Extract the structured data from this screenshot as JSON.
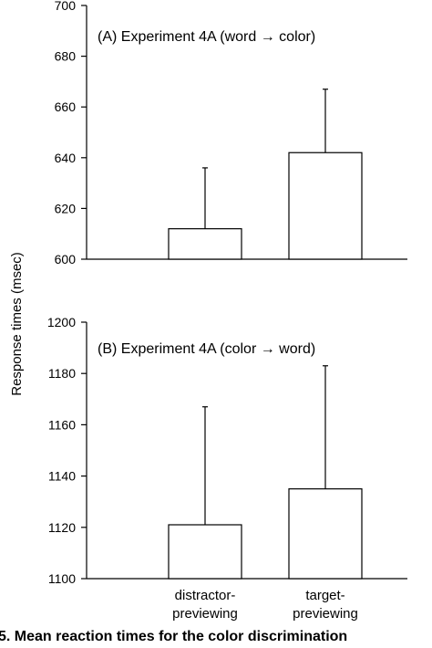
{
  "ylabel": "Response times (msec)",
  "caption": "5. Mean reaction times for the color discrimination",
  "chart_data": [
    {
      "type": "bar",
      "title": "(A) Experiment 4A (word → color)",
      "categories": [
        "distractor-previewing",
        "target-previewing"
      ],
      "values": [
        612,
        642
      ],
      "error_upper": [
        636,
        667
      ],
      "ylim": [
        600,
        700
      ],
      "yticks": [
        600,
        620,
        640,
        660,
        680,
        700
      ],
      "grid": false,
      "xlabel": "",
      "ylabel": "Response times (msec)"
    },
    {
      "type": "bar",
      "title": "(B) Experiment 4A (color → word)",
      "categories": [
        "distractor-previewing",
        "target-previewing"
      ],
      "category_lines": [
        [
          "distractor-",
          "previewing"
        ],
        [
          "target-",
          "previewing"
        ]
      ],
      "values": [
        1121,
        1135
      ],
      "error_upper": [
        1167,
        1183
      ],
      "ylim": [
        1100,
        1200
      ],
      "yticks": [
        1100,
        1120,
        1140,
        1160,
        1180,
        1200
      ],
      "grid": false,
      "xlabel": "",
      "ylabel": "Response times (msec)"
    }
  ]
}
